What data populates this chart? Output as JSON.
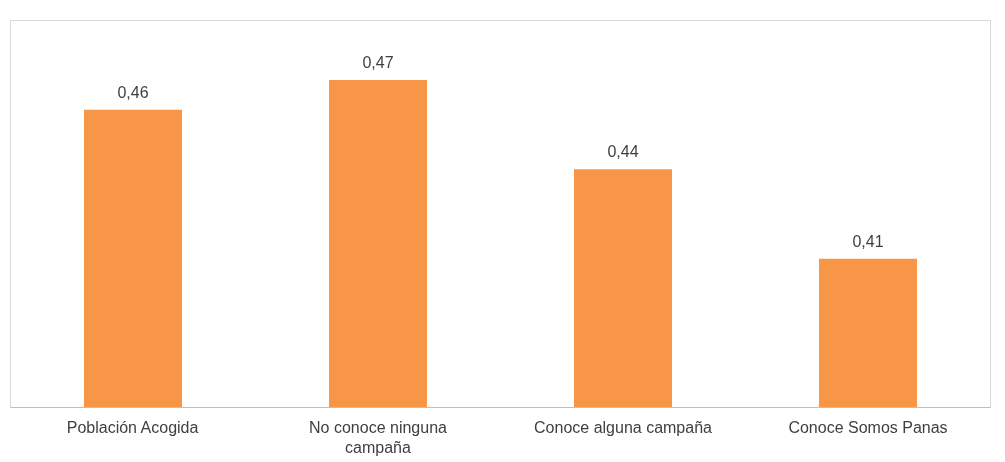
{
  "chart_data": {
    "type": "bar",
    "categories": [
      "Población Acogida",
      "No conoce ninguna campaña",
      "Conoce alguna campaña",
      "Conoce Somos Panas"
    ],
    "values": [
      0.46,
      0.47,
      0.44,
      0.41
    ],
    "value_labels": [
      "0,46",
      "0,47",
      "0,44",
      "0,41"
    ],
    "color": "#f79646",
    "ylim": [
      0.36,
      0.49
    ],
    "tick_labels": "x",
    "grid": false
  }
}
